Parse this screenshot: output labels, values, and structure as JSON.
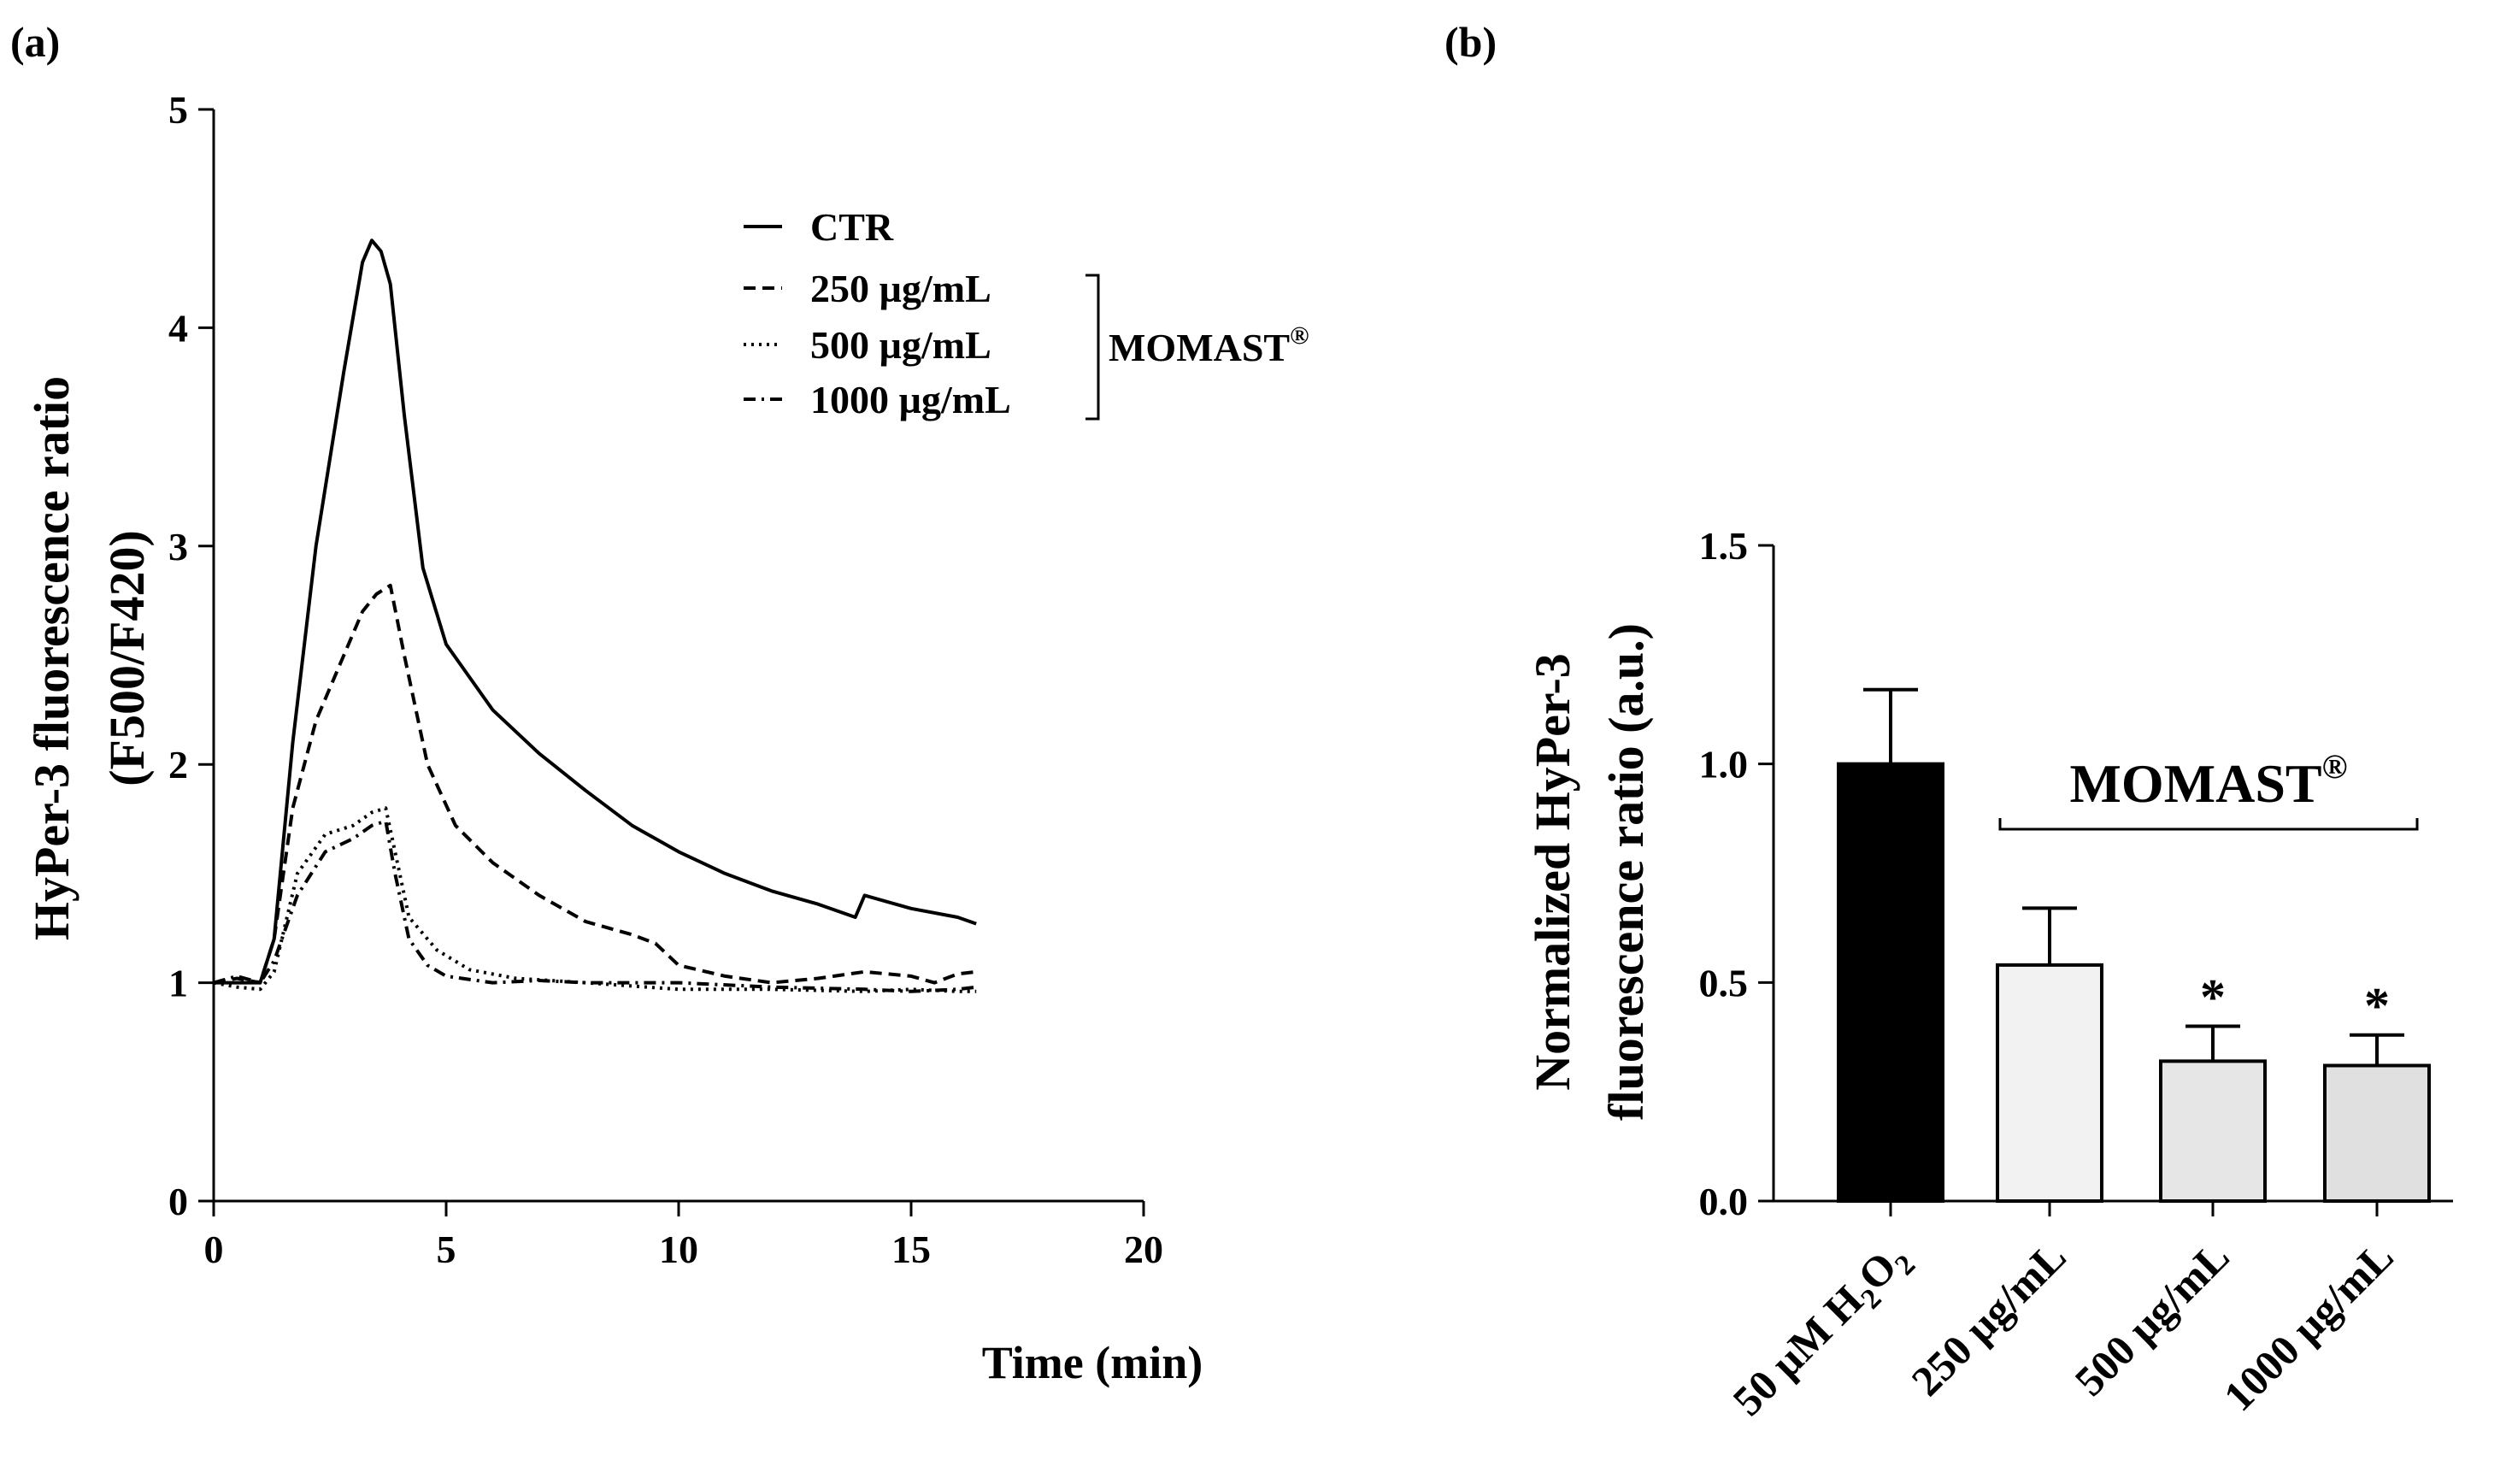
{
  "panel_labels": {
    "a": "(a)",
    "b": "(b)"
  },
  "chart_data": [
    {
      "type": "line",
      "title": "",
      "xlabel": "Time (min)",
      "ylabel_lines": [
        "HyPer-3 fluorescence ratio",
        "(F500/F420)"
      ],
      "xlim": [
        0,
        20
      ],
      "ylim": [
        0,
        5
      ],
      "xticks": [
        0,
        5,
        10,
        15,
        20
      ],
      "yticks": [
        0,
        1,
        2,
        3,
        4,
        5
      ],
      "grid": false,
      "legend_position": "top-right",
      "bracket_label": "MOMAST",
      "bracket_mark": "®",
      "series": [
        {
          "name": "CTR",
          "style": "solid",
          "x": [
            0,
            0.5,
            1.0,
            1.3,
            1.7,
            2.2,
            2.8,
            3.2,
            3.4,
            3.6,
            3.8,
            4.1,
            4.5,
            5.0,
            6.0,
            7.0,
            8.0,
            9.0,
            10.0,
            11.0,
            12.0,
            13.0,
            13.8,
            14.0,
            15.0,
            16.0,
            16.4
          ],
          "y": [
            1.0,
            1.0,
            1.0,
            1.2,
            2.1,
            3.0,
            3.8,
            4.3,
            4.4,
            4.35,
            4.2,
            3.6,
            2.9,
            2.55,
            2.25,
            2.05,
            1.88,
            1.72,
            1.6,
            1.5,
            1.42,
            1.36,
            1.3,
            1.4,
            1.34,
            1.3,
            1.27
          ]
        },
        {
          "name": "250 µg/mL",
          "style": "dashed",
          "x": [
            0,
            0.5,
            1.0,
            1.3,
            1.7,
            2.2,
            2.8,
            3.2,
            3.5,
            3.8,
            4.1,
            4.6,
            5.2,
            6.0,
            7.0,
            8.0,
            9.0,
            9.5,
            10.0,
            11.0,
            12.0,
            13.0,
            14.0,
            15.0,
            15.5,
            16.0,
            16.4
          ],
          "y": [
            1.0,
            1.02,
            1.0,
            1.2,
            1.8,
            2.2,
            2.5,
            2.7,
            2.78,
            2.82,
            2.5,
            2.0,
            1.72,
            1.55,
            1.4,
            1.28,
            1.22,
            1.18,
            1.08,
            1.03,
            1.0,
            1.02,
            1.05,
            1.03,
            1.0,
            1.04,
            1.05
          ]
        },
        {
          "name": "500 µg/mL",
          "style": "dotted",
          "x": [
            0,
            0.5,
            1.0,
            1.3,
            1.8,
            2.4,
            3.0,
            3.4,
            3.7,
            3.9,
            4.2,
            4.8,
            5.5,
            6.5,
            8.0,
            10.0,
            12.0,
            14.0,
            15.0,
            16.0,
            16.4
          ],
          "y": [
            1.0,
            0.98,
            0.97,
            1.05,
            1.5,
            1.68,
            1.72,
            1.78,
            1.8,
            1.6,
            1.3,
            1.15,
            1.06,
            1.02,
            1.0,
            0.97,
            0.97,
            0.96,
            0.97,
            0.96,
            0.96
          ]
        },
        {
          "name": "1000 µg/mL",
          "style": "dashdot",
          "x": [
            0,
            0.5,
            1.0,
            1.3,
            1.8,
            2.4,
            3.0,
            3.4,
            3.7,
            3.9,
            4.2,
            4.6,
            5.0,
            6.0,
            7.0,
            8.0,
            10.0,
            12.0,
            14.0,
            15.0,
            16.0,
            16.4
          ],
          "y": [
            1.0,
            1.03,
            1.0,
            1.1,
            1.4,
            1.6,
            1.66,
            1.72,
            1.74,
            1.5,
            1.2,
            1.08,
            1.03,
            1.0,
            1.01,
            1.0,
            1.0,
            0.98,
            0.97,
            0.96,
            0.97,
            0.98
          ]
        }
      ]
    },
    {
      "type": "bar",
      "title": "",
      "xlabel": "",
      "ylabel_lines": [
        "Normalized HyPer-3",
        "fluorescence ratio (a.u.)"
      ],
      "ylim": [
        0,
        1.5
      ],
      "yticks": [
        "0.0",
        "0.5",
        "1.0",
        "1.5"
      ],
      "grid": false,
      "bracket_label": "MOMAST",
      "bracket_mark": "®",
      "categories": [
        {
          "pre": "50 µM H",
          "sub": "2",
          "mid": "O",
          "sub2": "2"
        },
        {
          "pre": "250 µg/mL"
        },
        {
          "pre": "500 µg/mL"
        },
        {
          "pre": "1000 µg/mL"
        }
      ],
      "values": [
        1.0,
        0.54,
        0.32,
        0.31
      ],
      "errors": [
        0.17,
        0.13,
        0.08,
        0.07
      ],
      "significance": [
        "",
        "",
        "*",
        "*"
      ],
      "colors": [
        "#000000",
        "#f2f2f2",
        "#e6e6e6",
        "#e0e0e0"
      ]
    }
  ]
}
